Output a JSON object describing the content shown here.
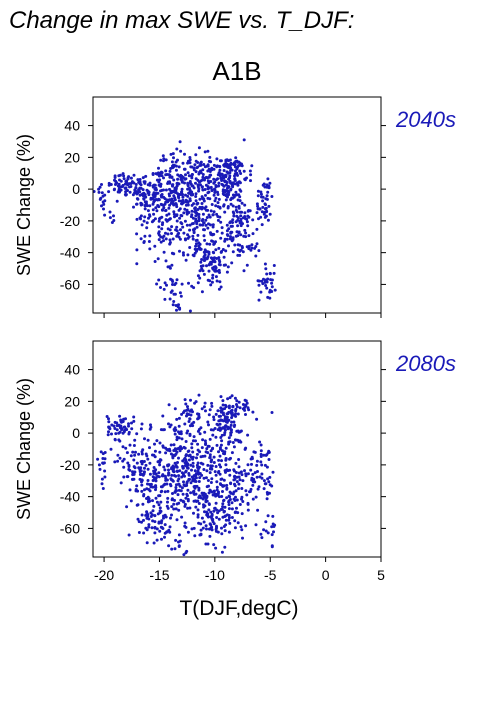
{
  "figure": {
    "title": "Change in max SWE vs. T_DJF:",
    "scenario": "A1B",
    "xlabel": "T(DJF,degC)",
    "ylabel": "SWE Change (%)",
    "accent_color": "#1a1ab8"
  },
  "chart_data": [
    {
      "type": "scatter",
      "period_label": "2040s",
      "ylabel": "SWE Change (%)",
      "xlim": [
        -21,
        5
      ],
      "ylim": [
        -78,
        58
      ],
      "xticks": [
        -20,
        -15,
        -10,
        -5,
        0,
        5
      ],
      "yticks": [
        -60,
        -40,
        -20,
        0,
        20,
        40
      ],
      "grid": false,
      "marker_color": "#1a1ab8",
      "clusters": [
        {
          "x": -20.2,
          "y": -4,
          "n": 18,
          "sx": 0.5,
          "sy": 5
        },
        {
          "x": -19.4,
          "y": -18,
          "n": 6,
          "sx": 0.3,
          "sy": 4
        },
        {
          "x": -18.2,
          "y": 3,
          "n": 45,
          "sx": 0.6,
          "sy": 4
        },
        {
          "x": -17.0,
          "y": 1,
          "n": 40,
          "sx": 0.8,
          "sy": 4
        },
        {
          "x": -15.5,
          "y": -5,
          "n": 130,
          "sx": 1.0,
          "sy": 10
        },
        {
          "x": -14.8,
          "y": -30,
          "n": 45,
          "sx": 0.9,
          "sy": 10
        },
        {
          "x": -14.0,
          "y": -60,
          "n": 20,
          "sx": 0.5,
          "sy": 6
        },
        {
          "x": -13.5,
          "y": -70,
          "n": 14,
          "sx": 0.4,
          "sy": 4
        },
        {
          "x": -13.0,
          "y": 2,
          "n": 170,
          "sx": 1.1,
          "sy": 11
        },
        {
          "x": -11.5,
          "y": -15,
          "n": 240,
          "sx": 1.4,
          "sy": 16
        },
        {
          "x": -10.5,
          "y": -40,
          "n": 60,
          "sx": 0.9,
          "sy": 10
        },
        {
          "x": -10.2,
          "y": -52,
          "n": 40,
          "sx": 0.6,
          "sy": 6
        },
        {
          "x": -9.0,
          "y": 7,
          "n": 130,
          "sx": 1.0,
          "sy": 7
        },
        {
          "x": -8.5,
          "y": 15,
          "n": 40,
          "sx": 0.8,
          "sy": 2
        },
        {
          "x": -8.2,
          "y": -20,
          "n": 70,
          "sx": 0.7,
          "sy": 12
        },
        {
          "x": -7.0,
          "y": -30,
          "n": 40,
          "sx": 0.6,
          "sy": 10
        },
        {
          "x": -5.5,
          "y": -7,
          "n": 45,
          "sx": 0.4,
          "sy": 8
        },
        {
          "x": -5.2,
          "y": -58,
          "n": 32,
          "sx": 0.4,
          "sy": 5
        }
      ]
    },
    {
      "type": "scatter",
      "period_label": "2080s",
      "ylabel": "SWE Change (%)",
      "xlim": [
        -21,
        5
      ],
      "ylim": [
        -78,
        58
      ],
      "xticks": [
        -20,
        -15,
        -10,
        -5,
        0,
        5
      ],
      "yticks": [
        -60,
        -40,
        -20,
        0,
        20,
        40
      ],
      "grid": false,
      "marker_color": "#1a1ab8",
      "clusters": [
        {
          "x": -20.3,
          "y": -18,
          "n": 15,
          "sx": 0.4,
          "sy": 6
        },
        {
          "x": -18.5,
          "y": 4,
          "n": 55,
          "sx": 0.6,
          "sy": 4
        },
        {
          "x": -17.5,
          "y": -18,
          "n": 40,
          "sx": 0.8,
          "sy": 8
        },
        {
          "x": -16.0,
          "y": -30,
          "n": 140,
          "sx": 1.0,
          "sy": 14
        },
        {
          "x": -15.0,
          "y": -55,
          "n": 50,
          "sx": 0.8,
          "sy": 8
        },
        {
          "x": -13.5,
          "y": -72,
          "n": 12,
          "sx": 0.5,
          "sy": 3
        },
        {
          "x": -13.2,
          "y": -20,
          "n": 180,
          "sx": 1.0,
          "sy": 16
        },
        {
          "x": -12.0,
          "y": 12,
          "n": 40,
          "sx": 0.9,
          "sy": 5
        },
        {
          "x": -11.0,
          "y": -30,
          "n": 230,
          "sx": 1.3,
          "sy": 17
        },
        {
          "x": -10.0,
          "y": -55,
          "n": 60,
          "sx": 0.8,
          "sy": 6
        },
        {
          "x": -9.0,
          "y": 4,
          "n": 110,
          "sx": 1.0,
          "sy": 8
        },
        {
          "x": -8.0,
          "y": 17,
          "n": 35,
          "sx": 0.7,
          "sy": 3
        },
        {
          "x": -8.3,
          "y": -35,
          "n": 70,
          "sx": 0.7,
          "sy": 12
        },
        {
          "x": -6.8,
          "y": -30,
          "n": 35,
          "sx": 0.6,
          "sy": 10
        },
        {
          "x": -5.5,
          "y": -22,
          "n": 40,
          "sx": 0.5,
          "sy": 12
        },
        {
          "x": -5.0,
          "y": -60,
          "n": 20,
          "sx": 0.4,
          "sy": 5
        }
      ]
    }
  ]
}
